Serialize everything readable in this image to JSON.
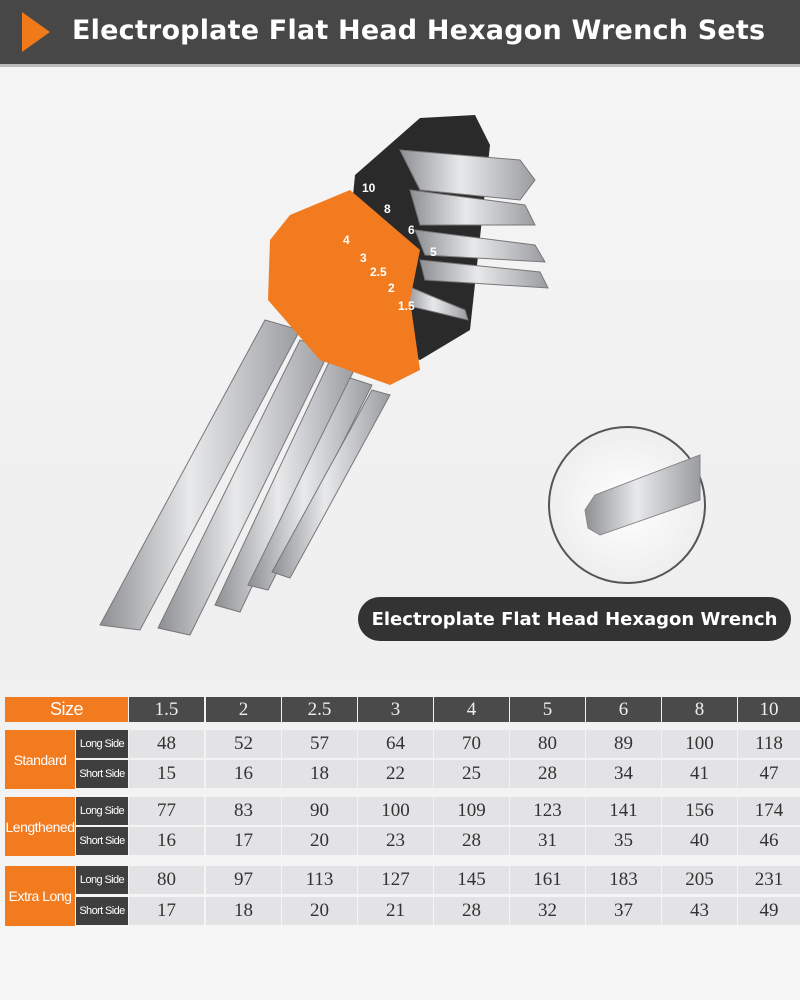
{
  "header": {
    "title": "Electroplate Flat Head Hexagon Wrench Sets"
  },
  "product": {
    "holder_labels": [
      "10",
      "8",
      "6",
      "5",
      "4",
      "3",
      "2.5",
      "2",
      "1.5"
    ],
    "callout_label": "Electroplate Flat Head Hexagon Wrench"
  },
  "colors": {
    "accent": "#f27a1f",
    "dark": "#474747",
    "cell": "#e3e3e6"
  },
  "table": {
    "size_label": "Size",
    "sizes": [
      "1.5",
      "2",
      "2.5",
      "3",
      "4",
      "5",
      "6",
      "8",
      "10"
    ],
    "groups": [
      {
        "label": "Standard",
        "rows": [
          {
            "label": "Long Side",
            "values": [
              "48",
              "52",
              "57",
              "64",
              "70",
              "80",
              "89",
              "100",
              "118"
            ]
          },
          {
            "label": "Short Side",
            "values": [
              "15",
              "16",
              "18",
              "22",
              "25",
              "28",
              "34",
              "41",
              "47"
            ]
          }
        ]
      },
      {
        "label": "Lengthened",
        "rows": [
          {
            "label": "Long Side",
            "values": [
              "77",
              "83",
              "90",
              "100",
              "109",
              "123",
              "141",
              "156",
              "174"
            ]
          },
          {
            "label": "Short Side",
            "values": [
              "16",
              "17",
              "20",
              "23",
              "28",
              "31",
              "35",
              "40",
              "46"
            ]
          }
        ]
      },
      {
        "label": "Extra Long",
        "rows": [
          {
            "label": "Long Side",
            "values": [
              "80",
              "97",
              "113",
              "127",
              "145",
              "161",
              "183",
              "205",
              "231"
            ]
          },
          {
            "label": "Short Side",
            "values": [
              "17",
              "18",
              "20",
              "21",
              "28",
              "32",
              "37",
              "43",
              "49"
            ]
          }
        ]
      }
    ]
  }
}
